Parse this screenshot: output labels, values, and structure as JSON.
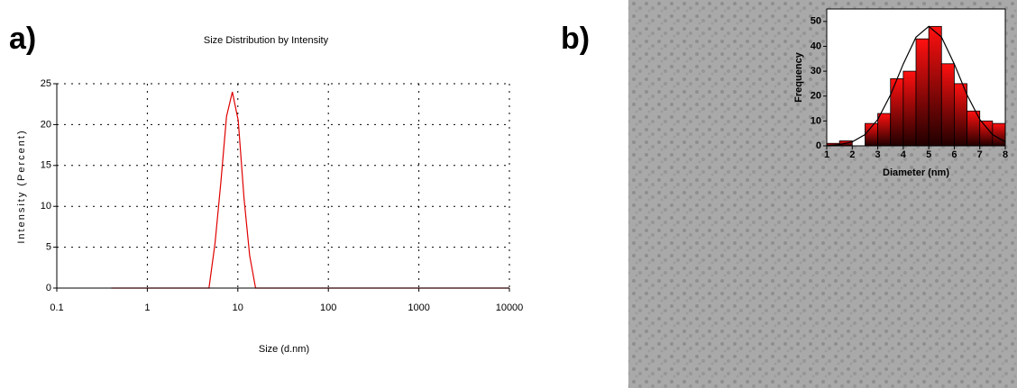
{
  "chart_data": [
    {
      "type": "line",
      "label": "a)",
      "title": "Size Distribution by Intensity",
      "x_label": "Size (d.nm)",
      "y_label": "Intensity (Percent)",
      "xscale": "log",
      "xlim": [
        0.1,
        10000
      ],
      "xticks": [
        0.1,
        1,
        10,
        100,
        1000,
        10000
      ],
      "ylim": [
        0,
        25
      ],
      "yticks": [
        0,
        5,
        10,
        15,
        20,
        25
      ],
      "grid": true,
      "series": [
        {
          "color": "#e00000",
          "x": [
            0.4,
            4.8,
            5.6,
            6.5,
            7.5,
            8.7,
            10.1,
            11.7,
            13.5,
            15.7,
            10000
          ],
          "values": [
            0,
            0,
            5.5,
            13,
            21,
            24,
            20.5,
            11,
            4,
            0,
            0
          ]
        }
      ]
    },
    {
      "type": "histogram",
      "label": "b)",
      "x_label": "Diameter (nm)",
      "y_label": "Frequency",
      "xlim": [
        1,
        8
      ],
      "xticks": [
        1,
        2,
        3,
        4,
        5,
        6,
        7,
        8
      ],
      "ylim": [
        0,
        55
      ],
      "yticks": [
        0,
        10,
        20,
        30,
        40,
        50
      ],
      "grid": false,
      "color": "#e00000",
      "bins": [
        1,
        1.5,
        2,
        2.5,
        3,
        3.5,
        4,
        4.5,
        5,
        5.5,
        6,
        6.5,
        7,
        7.5,
        8
      ],
      "values": [
        1,
        2,
        0,
        9,
        13,
        27,
        30,
        43,
        48,
        33,
        25,
        14,
        10,
        9
      ],
      "fit": {
        "color": "#000000",
        "x": [
          1,
          1.5,
          2,
          2.5,
          3,
          3.5,
          4,
          4.5,
          5,
          5.5,
          6,
          6.5,
          7,
          7.5,
          8
        ],
        "values": [
          0.1,
          0.5,
          1.6,
          4.5,
          10.6,
          20.5,
          32.9,
          43.7,
          48,
          43.7,
          32.9,
          20.5,
          10.6,
          4.5,
          1.6
        ]
      }
    }
  ]
}
